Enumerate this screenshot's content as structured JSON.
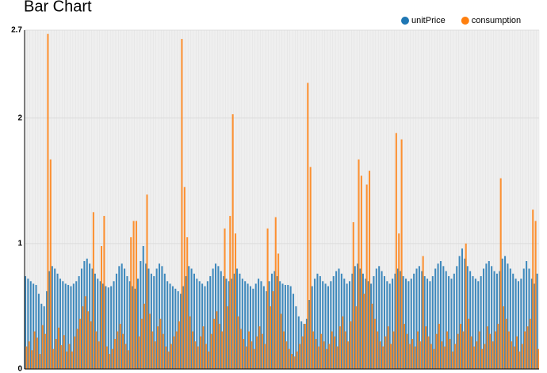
{
  "chart_data": {
    "type": "bar",
    "title": "Bar Chart",
    "categories": [
      null,
      null,
      null,
      null,
      null,
      null,
      null,
      null,
      null,
      null,
      null,
      null,
      null,
      null,
      null,
      null,
      null,
      null,
      null,
      null,
      null,
      null,
      null,
      null,
      null,
      null,
      null,
      null,
      null,
      null,
      null,
      null,
      null,
      null,
      null,
      null,
      null,
      null,
      null,
      null,
      null,
      null,
      null,
      null,
      null,
      null,
      null,
      null,
      null,
      null,
      null,
      null,
      null,
      null,
      null,
      null,
      null,
      null,
      null,
      null,
      null,
      null,
      null,
      null,
      null,
      null,
      null,
      null,
      null,
      null,
      null,
      null,
      null,
      null,
      null,
      null,
      null,
      null,
      null,
      null,
      null,
      null,
      null,
      null,
      null,
      null,
      null,
      null,
      null,
      null,
      null,
      null,
      null,
      null,
      null,
      null,
      null,
      null,
      null,
      null,
      null,
      null,
      null,
      null,
      null,
      null,
      null,
      null,
      null,
      null,
      null,
      null,
      null,
      null,
      null,
      null,
      null,
      null,
      null,
      null,
      null,
      null,
      null,
      null,
      null,
      null,
      null,
      null,
      null,
      null,
      null,
      null,
      null,
      null,
      null,
      null,
      null,
      null,
      null,
      null,
      null,
      null,
      null,
      null,
      null,
      null,
      null,
      null,
      null,
      null,
      null,
      null,
      null,
      null,
      null,
      null,
      null,
      null,
      null,
      null,
      null,
      null,
      null,
      null,
      null,
      null,
      null,
      null,
      null,
      null,
      null,
      null,
      null,
      null,
      null,
      null,
      null,
      null,
      null,
      null,
      null,
      null,
      null,
      null,
      null,
      null,
      null,
      null,
      null,
      null,
      null,
      null
    ],
    "series": [
      {
        "name": "unitPrice",
        "color": "#1f77b4",
        "values": [
          0.74,
          0.72,
          0.7,
          0.68,
          0.67,
          0.6,
          0.52,
          0.5,
          0.62,
          0.78,
          0.82,
          0.8,
          0.76,
          0.72,
          0.7,
          0.68,
          0.67,
          0.66,
          0.68,
          0.7,
          0.74,
          0.8,
          0.86,
          0.88,
          0.84,
          0.8,
          0.76,
          0.72,
          0.7,
          0.68,
          0.66,
          0.65,
          0.66,
          0.7,
          0.76,
          0.82,
          0.84,
          0.8,
          0.74,
          0.7,
          0.66,
          0.64,
          0.72,
          0.86,
          0.98,
          0.84,
          0.8,
          0.76,
          0.74,
          0.8,
          0.84,
          0.82,
          0.76,
          0.7,
          0.68,
          0.66,
          0.64,
          0.62,
          0.6,
          0.66,
          0.74,
          0.82,
          0.8,
          0.76,
          0.72,
          0.7,
          0.68,
          0.66,
          0.7,
          0.74,
          0.8,
          0.84,
          0.82,
          0.78,
          0.74,
          0.72,
          0.7,
          0.72,
          0.76,
          0.8,
          0.76,
          0.72,
          0.7,
          0.68,
          0.66,
          0.64,
          0.68,
          0.72,
          0.7,
          0.66,
          0.62,
          0.7,
          0.76,
          0.78,
          0.74,
          0.7,
          0.68,
          0.67,
          0.67,
          0.66,
          0.6,
          0.5,
          0.42,
          0.38,
          0.36,
          0.4,
          0.55,
          0.66,
          0.72,
          0.76,
          0.74,
          0.7,
          0.68,
          0.66,
          0.7,
          0.74,
          0.78,
          0.8,
          0.76,
          0.72,
          0.68,
          0.7,
          0.76,
          0.82,
          0.84,
          0.8,
          0.76,
          0.72,
          0.7,
          0.68,
          0.74,
          0.8,
          0.82,
          0.78,
          0.74,
          0.7,
          0.68,
          0.72,
          0.76,
          0.8,
          0.78,
          0.74,
          0.72,
          0.7,
          0.72,
          0.76,
          0.8,
          0.82,
          0.78,
          0.74,
          0.72,
          0.7,
          0.74,
          0.8,
          0.84,
          0.86,
          0.82,
          0.78,
          0.74,
          0.72,
          0.76,
          0.82,
          0.9,
          0.96,
          0.88,
          0.82,
          0.78,
          0.74,
          0.72,
          0.7,
          0.74,
          0.8,
          0.84,
          0.86,
          0.82,
          0.78,
          0.76,
          0.78,
          0.88,
          0.9,
          0.84,
          0.8,
          0.76,
          0.72,
          0.7,
          0.72,
          0.8,
          0.86,
          0.8,
          0.72,
          0.68,
          0.76
        ]
      },
      {
        "name": "consumption",
        "color": "#ff7f0e",
        "values": [
          0.18,
          0.22,
          0.15,
          0.3,
          0.25,
          0.12,
          0.35,
          0.28,
          2.67,
          1.67,
          0.16,
          0.24,
          0.33,
          0.19,
          0.27,
          0.14,
          0.2,
          0.14,
          0.26,
          0.32,
          0.4,
          0.5,
          0.58,
          0.46,
          0.38,
          1.25,
          0.3,
          0.22,
          0.98,
          1.22,
          0.18,
          0.12,
          0.16,
          0.24,
          0.3,
          0.36,
          0.28,
          0.2,
          0.15,
          1.05,
          1.18,
          1.18,
          0.26,
          0.4,
          0.52,
          1.39,
          0.44,
          0.3,
          0.22,
          0.34,
          0.4,
          0.28,
          0.18,
          0.14,
          0.2,
          0.26,
          0.3,
          0.38,
          2.63,
          1.45,
          1.05,
          0.42,
          0.3,
          0.22,
          0.18,
          0.26,
          0.34,
          0.2,
          0.14,
          0.28,
          0.4,
          0.46,
          0.36,
          0.3,
          1.12,
          0.5,
          1.22,
          2.03,
          1.08,
          0.42,
          0.32,
          0.24,
          0.18,
          0.3,
          0.22,
          0.16,
          0.26,
          0.34,
          0.28,
          0.2,
          1.12,
          0.5,
          0.62,
          1.21,
          0.92,
          0.44,
          0.3,
          0.22,
          0.16,
          0.12,
          0.1,
          0.14,
          0.2,
          0.26,
          0.36,
          2.28,
          1.61,
          0.3,
          0.24,
          0.18,
          0.28,
          0.22,
          0.16,
          0.2,
          0.3,
          0.26,
          0.18,
          0.34,
          0.42,
          0.3,
          0.22,
          0.38,
          1.17,
          0.5,
          1.67,
          1.54,
          0.6,
          1.47,
          1.58,
          0.52,
          0.4,
          0.3,
          0.22,
          0.18,
          0.26,
          0.34,
          0.2,
          0.3,
          1.88,
          1.08,
          1.83,
          0.36,
          0.28,
          0.2,
          0.24,
          0.18,
          0.3,
          0.22,
          0.9,
          0.34,
          0.26,
          0.2,
          0.16,
          0.28,
          0.36,
          0.22,
          0.18,
          0.3,
          0.24,
          0.14,
          0.2,
          0.28,
          0.36,
          0.3,
          1.0,
          0.4,
          0.26,
          0.18,
          0.22,
          0.3,
          0.16,
          0.2,
          0.34,
          0.28,
          0.22,
          0.3,
          0.36,
          1.52,
          0.5,
          0.4,
          0.3,
          0.22,
          0.18,
          0.26,
          0.14,
          0.2,
          0.3,
          0.34,
          0.4,
          1.27,
          1.18,
          0.16
        ]
      }
    ],
    "ylim": [
      0,
      2.7
    ],
    "yticks": [
      0,
      1,
      2,
      2.7
    ],
    "grid": true,
    "legend": "top-right"
  }
}
